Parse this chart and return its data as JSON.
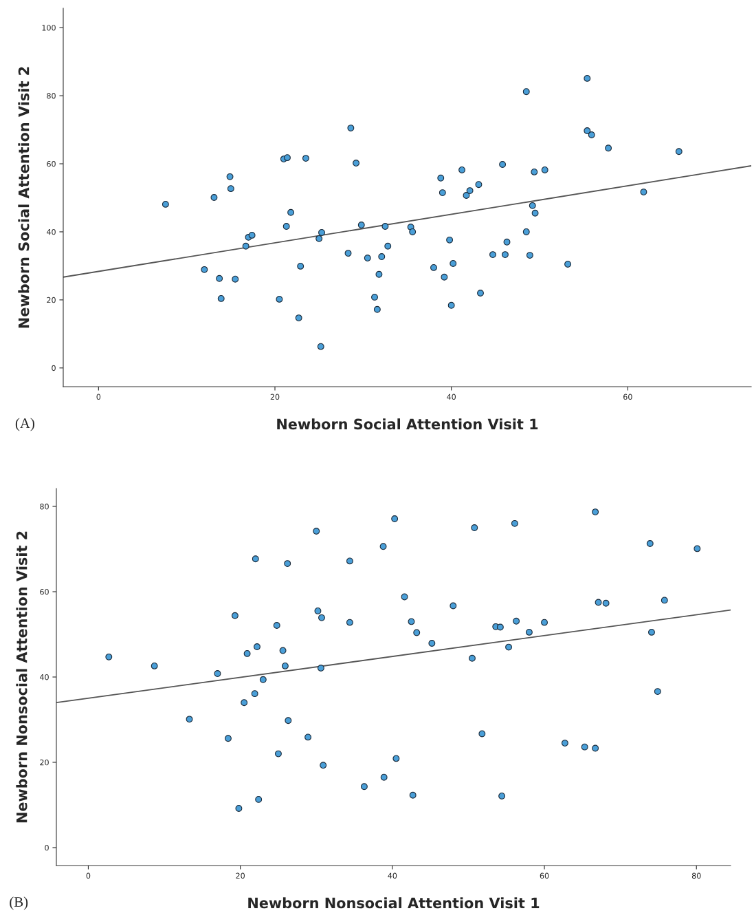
{
  "chart_data": [
    {
      "type": "scatter",
      "xlabel": "Newborn Social Attention Visit 1",
      "ylabel": "Newborn Social Attention Visit 2",
      "annotations": [
        "(A)"
      ],
      "xlim": [
        -4,
        74
      ],
      "ylim": [
        -5.5,
        105.7
      ],
      "xticks": [
        0,
        20,
        40,
        60
      ],
      "yticks": [
        0,
        20,
        40,
        60,
        80,
        100
      ],
      "grid": false,
      "marker": "circle",
      "series": [
        {
          "color": "#4a9fd8",
          "x": [
            7.6,
            12.0,
            13.1,
            13.7,
            13.9,
            14.9,
            15.0,
            15.5,
            16.7,
            17.0,
            17.4,
            20.5,
            21.0,
            21.4,
            21.3,
            21.8,
            22.7,
            22.9,
            23.5,
            25.0,
            25.3,
            25.2,
            28.3,
            28.6,
            29.2,
            29.8,
            30.5,
            31.3,
            31.6,
            31.8,
            32.1,
            32.5,
            32.8,
            35.4,
            35.6,
            38.0,
            38.8,
            39.0,
            39.2,
            39.8,
            40.0,
            40.2,
            41.2,
            41.7,
            42.1,
            43.1,
            43.3,
            44.7,
            45.8,
            46.1,
            46.3,
            48.5,
            48.5,
            48.9,
            49.2,
            49.4,
            49.5,
            50.6,
            53.2,
            55.4,
            55.4,
            55.9,
            57.8,
            61.8,
            65.8
          ],
          "values": [
            48.1,
            28.9,
            50.1,
            26.3,
            20.4,
            56.2,
            52.7,
            26.1,
            35.8,
            38.4,
            39.0,
            20.2,
            61.4,
            61.8,
            41.6,
            45.7,
            14.7,
            29.9,
            61.6,
            38.0,
            39.8,
            6.3,
            33.7,
            70.5,
            60.2,
            42.0,
            32.3,
            20.8,
            17.2,
            27.5,
            32.7,
            41.6,
            35.8,
            41.4,
            40.0,
            29.5,
            55.8,
            51.5,
            26.7,
            37.6,
            18.4,
            30.7,
            58.2,
            50.7,
            52.1,
            53.9,
            22.0,
            33.3,
            59.8,
            33.3,
            37.0,
            40.0,
            81.2,
            33.1,
            47.7,
            57.6,
            45.5,
            58.2,
            30.5,
            85.1,
            69.7,
            68.5,
            64.6,
            51.7,
            63.6
          ]
        },
        {
          "type": "line",
          "marker": "none",
          "color": "#555555",
          "x": [
            -4,
            74
          ],
          "values": [
            26.7,
            59.4
          ]
        }
      ]
    },
    {
      "type": "scatter",
      "xlabel": "Newborn Nonsocial Attention Visit 1",
      "ylabel": "Newborn Nonsocial Attention Visit 2",
      "annotations": [
        "(B)"
      ],
      "xlim": [
        -4.2,
        84.5
      ],
      "ylim": [
        -4.2,
        84.2
      ],
      "xticks": [
        0,
        20,
        40,
        60,
        80
      ],
      "yticks": [
        0,
        20,
        40,
        60,
        80
      ],
      "grid": false,
      "marker": "circle",
      "series": [
        {
          "color": "#4a9fd8",
          "x": [
            2.7,
            8.7,
            13.3,
            17.0,
            18.4,
            19.3,
            19.8,
            20.5,
            20.9,
            21.9,
            22.0,
            22.2,
            22.4,
            23.0,
            24.8,
            25.0,
            25.6,
            25.9,
            26.2,
            26.3,
            28.9,
            30.0,
            30.2,
            30.7,
            30.6,
            30.9,
            34.4,
            34.4,
            36.3,
            38.8,
            38.9,
            40.3,
            40.5,
            41.6,
            42.5,
            42.7,
            43.2,
            45.2,
            48.0,
            50.5,
            50.8,
            51.8,
            53.6,
            54.2,
            54.4,
            55.3,
            56.1,
            56.3,
            58.0,
            60.0,
            62.7,
            65.3,
            66.7,
            66.7,
            67.1,
            68.1,
            73.9,
            74.1,
            74.9,
            75.8,
            80.1
          ],
          "values": [
            44.7,
            42.6,
            30.1,
            40.8,
            25.6,
            54.4,
            9.2,
            34.0,
            45.5,
            36.1,
            67.7,
            47.1,
            11.3,
            39.4,
            52.1,
            22.0,
            46.2,
            42.6,
            66.6,
            29.8,
            25.9,
            74.2,
            55.5,
            53.9,
            42.1,
            19.3,
            52.8,
            67.2,
            14.3,
            70.6,
            16.5,
            77.1,
            20.9,
            58.8,
            53.0,
            12.3,
            50.4,
            47.9,
            56.7,
            44.4,
            75.0,
            26.7,
            51.8,
            51.7,
            12.1,
            47.0,
            76.0,
            53.1,
            50.5,
            52.8,
            24.5,
            23.6,
            78.7,
            23.3,
            57.5,
            57.3,
            71.3,
            50.5,
            36.6,
            58.0,
            70.1
          ]
        },
        {
          "type": "line",
          "marker": "none",
          "color": "#555555",
          "x": [
            -4.2,
            84.5
          ],
          "values": [
            34.0,
            55.7
          ]
        }
      ]
    }
  ]
}
